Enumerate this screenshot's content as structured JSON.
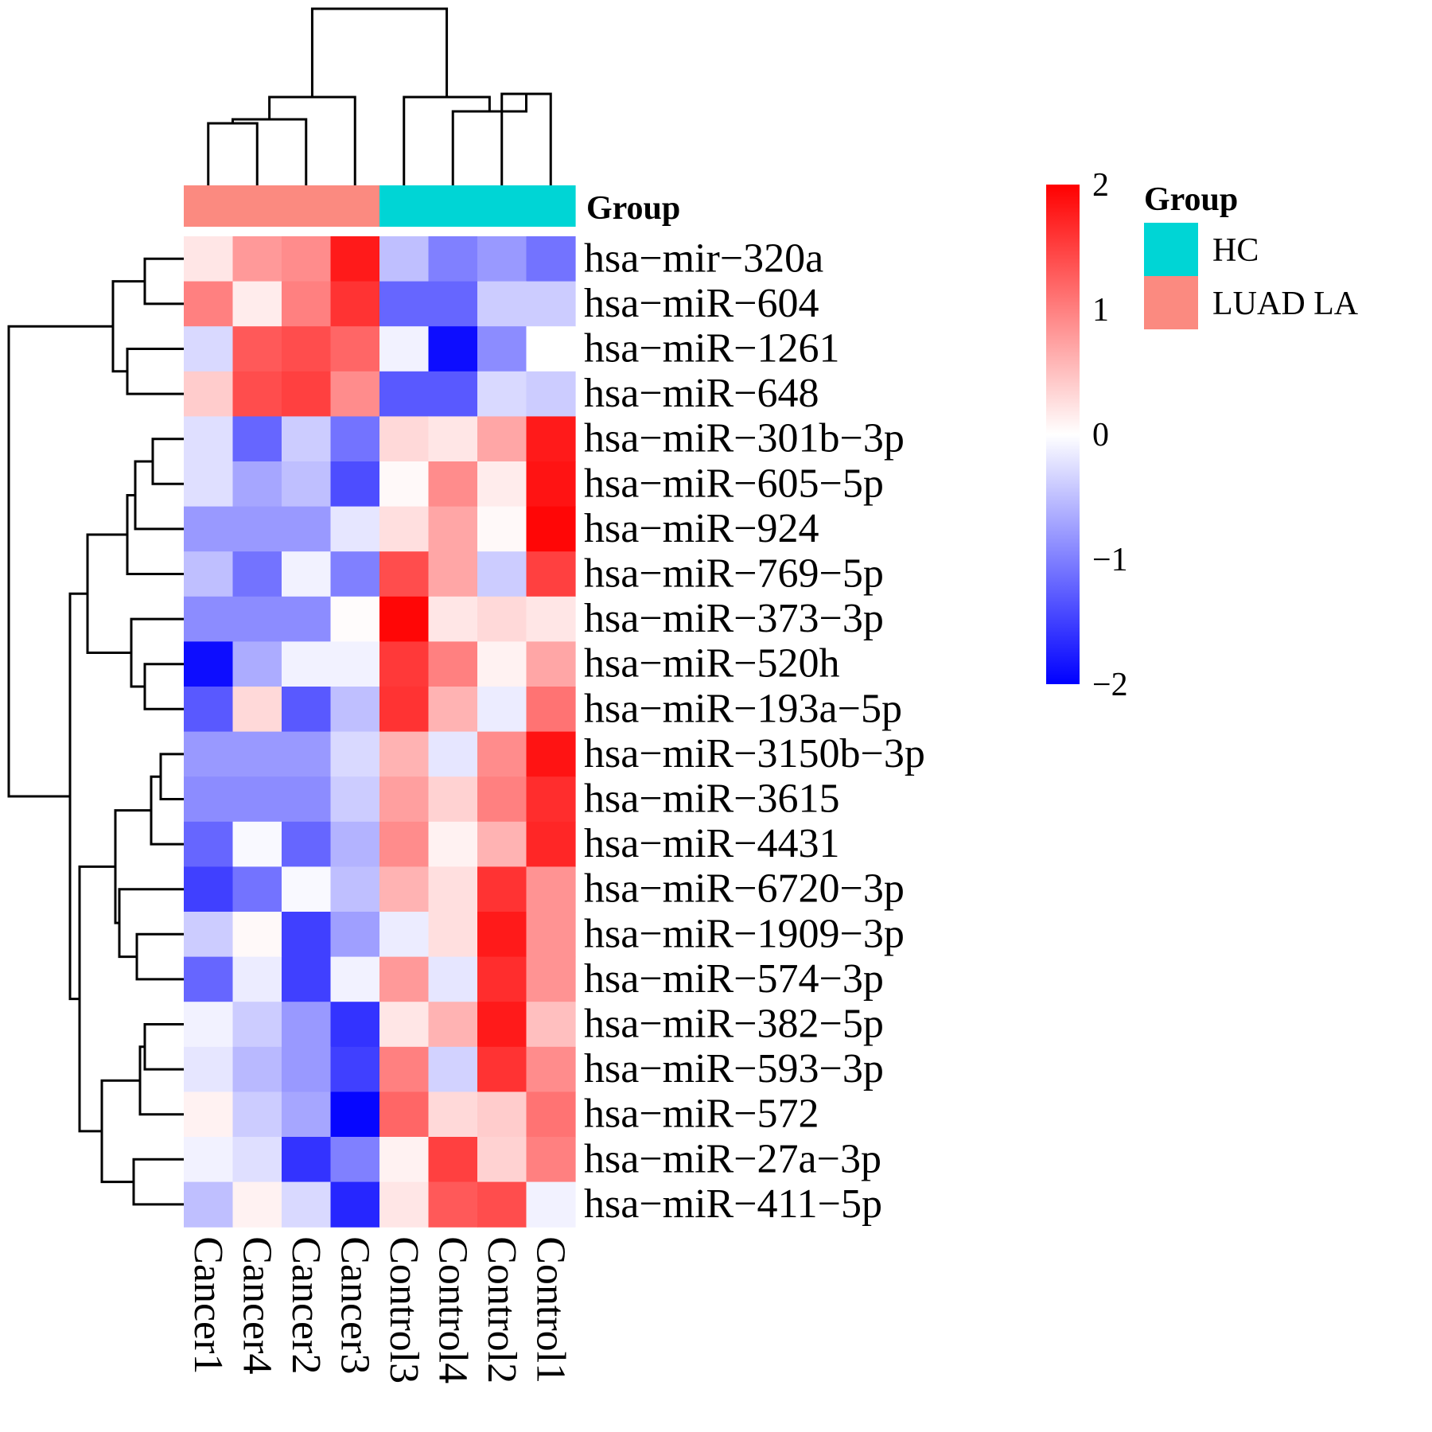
{
  "chart_data": {
    "type": "heatmap",
    "title": "",
    "columns": [
      "Cancer1",
      "Cancer4",
      "Cancer2",
      "Cancer3",
      "Control3",
      "Control4",
      "Control2",
      "Control1"
    ],
    "column_groups": [
      "LUAD LA",
      "LUAD LA",
      "LUAD LA",
      "LUAD LA",
      "HC",
      "HC",
      "HC",
      "HC"
    ],
    "rows": [
      "hsa−mir−320a",
      "hsa−miR−604",
      "hsa−miR−1261",
      "hsa−miR−648",
      "hsa−miR−301b−3p",
      "hsa−miR−605−5p",
      "hsa−miR−924",
      "hsa−miR−769−5p",
      "hsa−miR−373−3p",
      "hsa−miR−520h",
      "hsa−miR−193a−5p",
      "hsa−miR−3150b−3p",
      "hsa−miR−3615",
      "hsa−miR−4431",
      "hsa−miR−6720−3p",
      "hsa−miR−1909−3p",
      "hsa−miR−574−3p",
      "hsa−miR−382−5p",
      "hsa−miR−593−3p",
      "hsa−miR−572",
      "hsa−miR−27a−3p",
      "hsa−miR−411−5p"
    ],
    "values": [
      [
        0.2,
        0.8,
        0.9,
        1.8,
        -0.5,
        -1.0,
        -0.8,
        -1.1
      ],
      [
        1.0,
        0.15,
        1.0,
        1.6,
        -1.2,
        -1.2,
        -0.4,
        -0.4
      ],
      [
        -0.3,
        1.3,
        1.4,
        1.2,
        -0.1,
        -1.9,
        -0.9,
        0.0
      ],
      [
        0.4,
        1.4,
        1.5,
        0.9,
        -1.3,
        -1.3,
        -0.3,
        -0.4
      ],
      [
        -0.25,
        -1.2,
        -0.4,
        -1.1,
        0.3,
        0.2,
        0.7,
        1.8
      ],
      [
        -0.25,
        -0.7,
        -0.5,
        -1.4,
        0.05,
        0.9,
        0.15,
        1.85
      ],
      [
        -0.8,
        -0.8,
        -0.8,
        -0.2,
        0.25,
        0.7,
        0.05,
        1.95
      ],
      [
        -0.5,
        -1.1,
        -0.1,
        -1.0,
        1.4,
        0.7,
        -0.4,
        1.5
      ],
      [
        -0.9,
        -0.9,
        -0.9,
        0.02,
        1.95,
        0.2,
        0.3,
        0.2
      ],
      [
        -1.9,
        -0.65,
        -0.1,
        -0.1,
        1.55,
        1.0,
        0.1,
        0.7
      ],
      [
        -1.3,
        0.3,
        -1.3,
        -0.5,
        1.6,
        0.6,
        -0.15,
        1.1
      ],
      [
        -0.8,
        -0.8,
        -0.8,
        -0.3,
        0.6,
        -0.2,
        0.9,
        1.85
      ],
      [
        -0.9,
        -0.9,
        -0.9,
        -0.4,
        0.75,
        0.35,
        1.0,
        1.65
      ],
      [
        -1.2,
        -0.05,
        -1.2,
        -0.6,
        0.9,
        0.1,
        0.6,
        1.7
      ],
      [
        -1.5,
        -1.1,
        -0.05,
        -0.5,
        0.6,
        0.25,
        1.6,
        0.85
      ],
      [
        -0.4,
        0.05,
        -1.5,
        -0.75,
        -0.15,
        0.25,
        1.8,
        0.85
      ],
      [
        -1.2,
        -0.15,
        -1.5,
        -0.1,
        0.8,
        -0.2,
        1.65,
        0.85
      ],
      [
        -0.1,
        -0.4,
        -0.8,
        -1.6,
        0.2,
        0.6,
        1.8,
        0.5
      ],
      [
        -0.2,
        -0.55,
        -0.8,
        -1.5,
        1.0,
        -0.35,
        1.6,
        0.9
      ],
      [
        0.1,
        -0.4,
        -0.7,
        -1.95,
        1.2,
        0.3,
        0.4,
        1.1
      ],
      [
        -0.1,
        -0.25,
        -1.6,
        -1.0,
        0.1,
        1.5,
        0.35,
        1.0
      ],
      [
        -0.5,
        0.1,
        -0.3,
        -1.7,
        0.2,
        1.3,
        1.4,
        -0.1
      ]
    ],
    "color_scale": {
      "min": -2,
      "max": 2,
      "low_color": "#0000ff",
      "mid_color": "#ffffff",
      "high_color": "#ff0000",
      "ticks": [
        "2",
        "1",
        "0",
        "−1",
        "−2"
      ]
    },
    "annotation": {
      "title": "Group",
      "legend_title": "Group",
      "categories": [
        {
          "name": "HC",
          "color": "#00d5d5"
        },
        {
          "name": "LUAD LA",
          "color": "#fb8a80"
        }
      ]
    },
    "dendrograms": {
      "column": "hierarchical clustering of samples",
      "row": "hierarchical clustering of miRNAs"
    }
  }
}
